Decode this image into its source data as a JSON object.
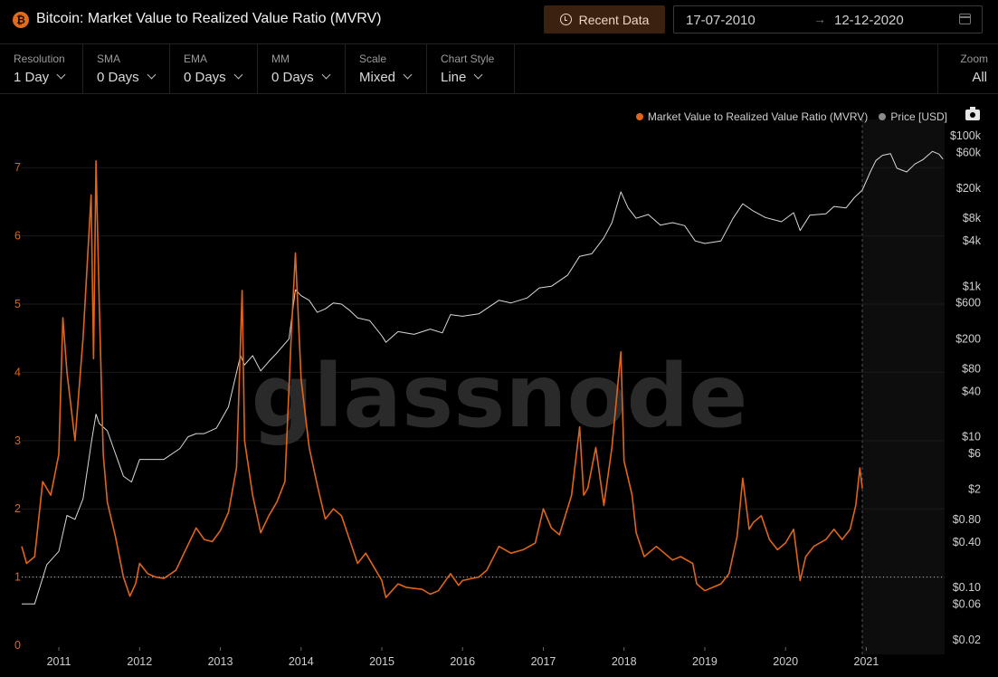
{
  "header": {
    "title": "Bitcoin: Market Value to Realized Value Ratio (MVRV)",
    "coin_icon": "bitcoin-icon",
    "coin_glyph": "₿",
    "recent_button": "Recent Data",
    "date_start": "17-07-2010",
    "date_end": "12-12-2020",
    "date_arrow": "→"
  },
  "toolbar": [
    {
      "label": "Resolution",
      "value": "1 Day"
    },
    {
      "label": "SMA",
      "value": "0 Days"
    },
    {
      "label": "EMA",
      "value": "0 Days"
    },
    {
      "label": "MM",
      "value": "0 Days"
    },
    {
      "label": "Scale",
      "value": "Mixed"
    },
    {
      "label": "Chart Style",
      "value": "Line"
    }
  ],
  "zoom": {
    "label": "Zoom",
    "value": "All"
  },
  "watermark": "glassnode",
  "colors": {
    "mvrv": "#e0651a",
    "price": "#d9d9d9",
    "accent": "#e26b1c",
    "background": "#000000"
  },
  "chart_data": {
    "type": "line",
    "x_ticks": [
      "2011",
      "2012",
      "2013",
      "2014",
      "2015",
      "2016",
      "2017",
      "2018",
      "2019",
      "2020",
      "2021"
    ],
    "x_range": [
      2010.54,
      2021.97
    ],
    "y_left": {
      "ticks": [
        "0",
        "1",
        "2",
        "3",
        "4",
        "5",
        "6",
        "7"
      ],
      "range": [
        0,
        7.6
      ]
    },
    "y_right": {
      "scale": "log",
      "ticks": [
        "$0.02",
        "$0.06",
        "$0.10",
        "$0.40",
        "$0.80",
        "$2",
        "$6",
        "$10",
        "$40",
        "$80",
        "$200",
        "$600",
        "$1k",
        "$4k",
        "$8k",
        "$20k",
        "$60k",
        "$100k"
      ]
    },
    "reference_line": 1,
    "projection_start": 2020.95,
    "series": [
      {
        "name": "Market Value to Realized Value Ratio (MVRV)",
        "axis": "left",
        "points": [
          [
            2010.54,
            1.45
          ],
          [
            2010.6,
            1.2
          ],
          [
            2010.7,
            1.3
          ],
          [
            2010.8,
            2.4
          ],
          [
            2010.9,
            2.2
          ],
          [
            2011.0,
            2.8
          ],
          [
            2011.05,
            4.8
          ],
          [
            2011.1,
            4.0
          ],
          [
            2011.2,
            3.0
          ],
          [
            2011.3,
            4.5
          ],
          [
            2011.4,
            6.6
          ],
          [
            2011.43,
            4.2
          ],
          [
            2011.46,
            7.1
          ],
          [
            2011.5,
            5.0
          ],
          [
            2011.55,
            2.8
          ],
          [
            2011.6,
            2.1
          ],
          [
            2011.7,
            1.6
          ],
          [
            2011.8,
            1.0
          ],
          [
            2011.88,
            0.72
          ],
          [
            2011.95,
            0.9
          ],
          [
            2012.0,
            1.2
          ],
          [
            2012.1,
            1.05
          ],
          [
            2012.2,
            1.0
          ],
          [
            2012.3,
            0.98
          ],
          [
            2012.45,
            1.1
          ],
          [
            2012.55,
            1.35
          ],
          [
            2012.7,
            1.72
          ],
          [
            2012.8,
            1.55
          ],
          [
            2012.9,
            1.52
          ],
          [
            2013.0,
            1.68
          ],
          [
            2013.1,
            1.95
          ],
          [
            2013.2,
            2.6
          ],
          [
            2013.27,
            5.2
          ],
          [
            2013.3,
            3.0
          ],
          [
            2013.4,
            2.2
          ],
          [
            2013.5,
            1.65
          ],
          [
            2013.6,
            1.9
          ],
          [
            2013.7,
            2.1
          ],
          [
            2013.8,
            2.4
          ],
          [
            2013.88,
            4.6
          ],
          [
            2013.93,
            5.75
          ],
          [
            2014.0,
            3.9
          ],
          [
            2014.1,
            2.9
          ],
          [
            2014.2,
            2.35
          ],
          [
            2014.3,
            1.85
          ],
          [
            2014.4,
            2.0
          ],
          [
            2014.5,
            1.9
          ],
          [
            2014.6,
            1.55
          ],
          [
            2014.7,
            1.2
          ],
          [
            2014.8,
            1.35
          ],
          [
            2014.9,
            1.15
          ],
          [
            2015.0,
            0.95
          ],
          [
            2015.05,
            0.7
          ],
          [
            2015.2,
            0.9
          ],
          [
            2015.3,
            0.85
          ],
          [
            2015.5,
            0.82
          ],
          [
            2015.6,
            0.75
          ],
          [
            2015.7,
            0.8
          ],
          [
            2015.85,
            1.05
          ],
          [
            2015.95,
            0.88
          ],
          [
            2016.0,
            0.95
          ],
          [
            2016.2,
            1.0
          ],
          [
            2016.3,
            1.1
          ],
          [
            2016.45,
            1.45
          ],
          [
            2016.6,
            1.35
          ],
          [
            2016.75,
            1.4
          ],
          [
            2016.9,
            1.5
          ],
          [
            2017.0,
            2.0
          ],
          [
            2017.1,
            1.72
          ],
          [
            2017.2,
            1.62
          ],
          [
            2017.35,
            2.2
          ],
          [
            2017.45,
            3.2
          ],
          [
            2017.5,
            2.2
          ],
          [
            2017.55,
            2.3
          ],
          [
            2017.65,
            2.9
          ],
          [
            2017.75,
            2.05
          ],
          [
            2017.85,
            2.9
          ],
          [
            2017.96,
            4.3
          ],
          [
            2018.0,
            2.7
          ],
          [
            2018.1,
            2.2
          ],
          [
            2018.15,
            1.65
          ],
          [
            2018.25,
            1.3
          ],
          [
            2018.4,
            1.45
          ],
          [
            2018.5,
            1.35
          ],
          [
            2018.6,
            1.25
          ],
          [
            2018.7,
            1.3
          ],
          [
            2018.85,
            1.2
          ],
          [
            2018.9,
            0.9
          ],
          [
            2019.0,
            0.8
          ],
          [
            2019.1,
            0.85
          ],
          [
            2019.2,
            0.9
          ],
          [
            2019.3,
            1.05
          ],
          [
            2019.4,
            1.6
          ],
          [
            2019.47,
            2.45
          ],
          [
            2019.55,
            1.7
          ],
          [
            2019.6,
            1.8
          ],
          [
            2019.7,
            1.9
          ],
          [
            2019.8,
            1.55
          ],
          [
            2019.9,
            1.4
          ],
          [
            2020.0,
            1.5
          ],
          [
            2020.1,
            1.7
          ],
          [
            2020.18,
            0.95
          ],
          [
            2020.25,
            1.3
          ],
          [
            2020.35,
            1.45
          ],
          [
            2020.5,
            1.55
          ],
          [
            2020.6,
            1.7
          ],
          [
            2020.7,
            1.55
          ],
          [
            2020.8,
            1.7
          ],
          [
            2020.87,
            2.05
          ],
          [
            2020.92,
            2.6
          ],
          [
            2020.95,
            2.3
          ]
        ]
      },
      {
        "name": "Price [USD]",
        "axis": "right",
        "points": [
          [
            2010.54,
            0.06
          ],
          [
            2010.7,
            0.06
          ],
          [
            2010.85,
            0.2
          ],
          [
            2011.0,
            0.3
          ],
          [
            2011.1,
            0.9
          ],
          [
            2011.2,
            0.8
          ],
          [
            2011.3,
            1.5
          ],
          [
            2011.4,
            8
          ],
          [
            2011.46,
            20
          ],
          [
            2011.5,
            15
          ],
          [
            2011.6,
            12
          ],
          [
            2011.7,
            6
          ],
          [
            2011.8,
            3
          ],
          [
            2011.9,
            2.5
          ],
          [
            2012.0,
            5
          ],
          [
            2012.1,
            5
          ],
          [
            2012.3,
            5
          ],
          [
            2012.5,
            7
          ],
          [
            2012.6,
            10
          ],
          [
            2012.7,
            11
          ],
          [
            2012.8,
            11
          ],
          [
            2012.95,
            13
          ],
          [
            2013.1,
            25
          ],
          [
            2013.25,
            120
          ],
          [
            2013.3,
            90
          ],
          [
            2013.4,
            120
          ],
          [
            2013.5,
            75
          ],
          [
            2013.6,
            100
          ],
          [
            2013.7,
            130
          ],
          [
            2013.85,
            200
          ],
          [
            2013.93,
            900
          ],
          [
            2014.0,
            750
          ],
          [
            2014.1,
            650
          ],
          [
            2014.2,
            450
          ],
          [
            2014.3,
            500
          ],
          [
            2014.4,
            600
          ],
          [
            2014.5,
            580
          ],
          [
            2014.6,
            480
          ],
          [
            2014.7,
            380
          ],
          [
            2014.85,
            350
          ],
          [
            2015.0,
            220
          ],
          [
            2015.05,
            180
          ],
          [
            2015.2,
            250
          ],
          [
            2015.4,
            230
          ],
          [
            2015.6,
            270
          ],
          [
            2015.75,
            240
          ],
          [
            2015.85,
            420
          ],
          [
            2016.0,
            400
          ],
          [
            2016.2,
            430
          ],
          [
            2016.45,
            650
          ],
          [
            2016.6,
            600
          ],
          [
            2016.8,
            700
          ],
          [
            2016.95,
            950
          ],
          [
            2017.1,
            1000
          ],
          [
            2017.3,
            1400
          ],
          [
            2017.45,
            2500
          ],
          [
            2017.6,
            2700
          ],
          [
            2017.75,
            4400
          ],
          [
            2017.85,
            7000
          ],
          [
            2017.96,
            18000
          ],
          [
            2018.05,
            11000
          ],
          [
            2018.15,
            8000
          ],
          [
            2018.3,
            9000
          ],
          [
            2018.45,
            6500
          ],
          [
            2018.6,
            7000
          ],
          [
            2018.75,
            6400
          ],
          [
            2018.88,
            4000
          ],
          [
            2019.0,
            3700
          ],
          [
            2019.2,
            4000
          ],
          [
            2019.35,
            8000
          ],
          [
            2019.47,
            12500
          ],
          [
            2019.6,
            10000
          ],
          [
            2019.75,
            8200
          ],
          [
            2019.95,
            7200
          ],
          [
            2020.1,
            9500
          ],
          [
            2020.18,
            5500
          ],
          [
            2020.3,
            8800
          ],
          [
            2020.5,
            9200
          ],
          [
            2020.6,
            11500
          ],
          [
            2020.75,
            11000
          ],
          [
            2020.85,
            15000
          ],
          [
            2020.95,
            19000
          ],
          [
            2021.05,
            33000
          ],
          [
            2021.12,
            47000
          ],
          [
            2021.2,
            55000
          ],
          [
            2021.3,
            58000
          ],
          [
            2021.38,
            37000
          ],
          [
            2021.5,
            33000
          ],
          [
            2021.6,
            42000
          ],
          [
            2021.7,
            48000
          ],
          [
            2021.82,
            62000
          ],
          [
            2021.9,
            57000
          ],
          [
            2021.95,
            49000
          ]
        ]
      }
    ]
  }
}
